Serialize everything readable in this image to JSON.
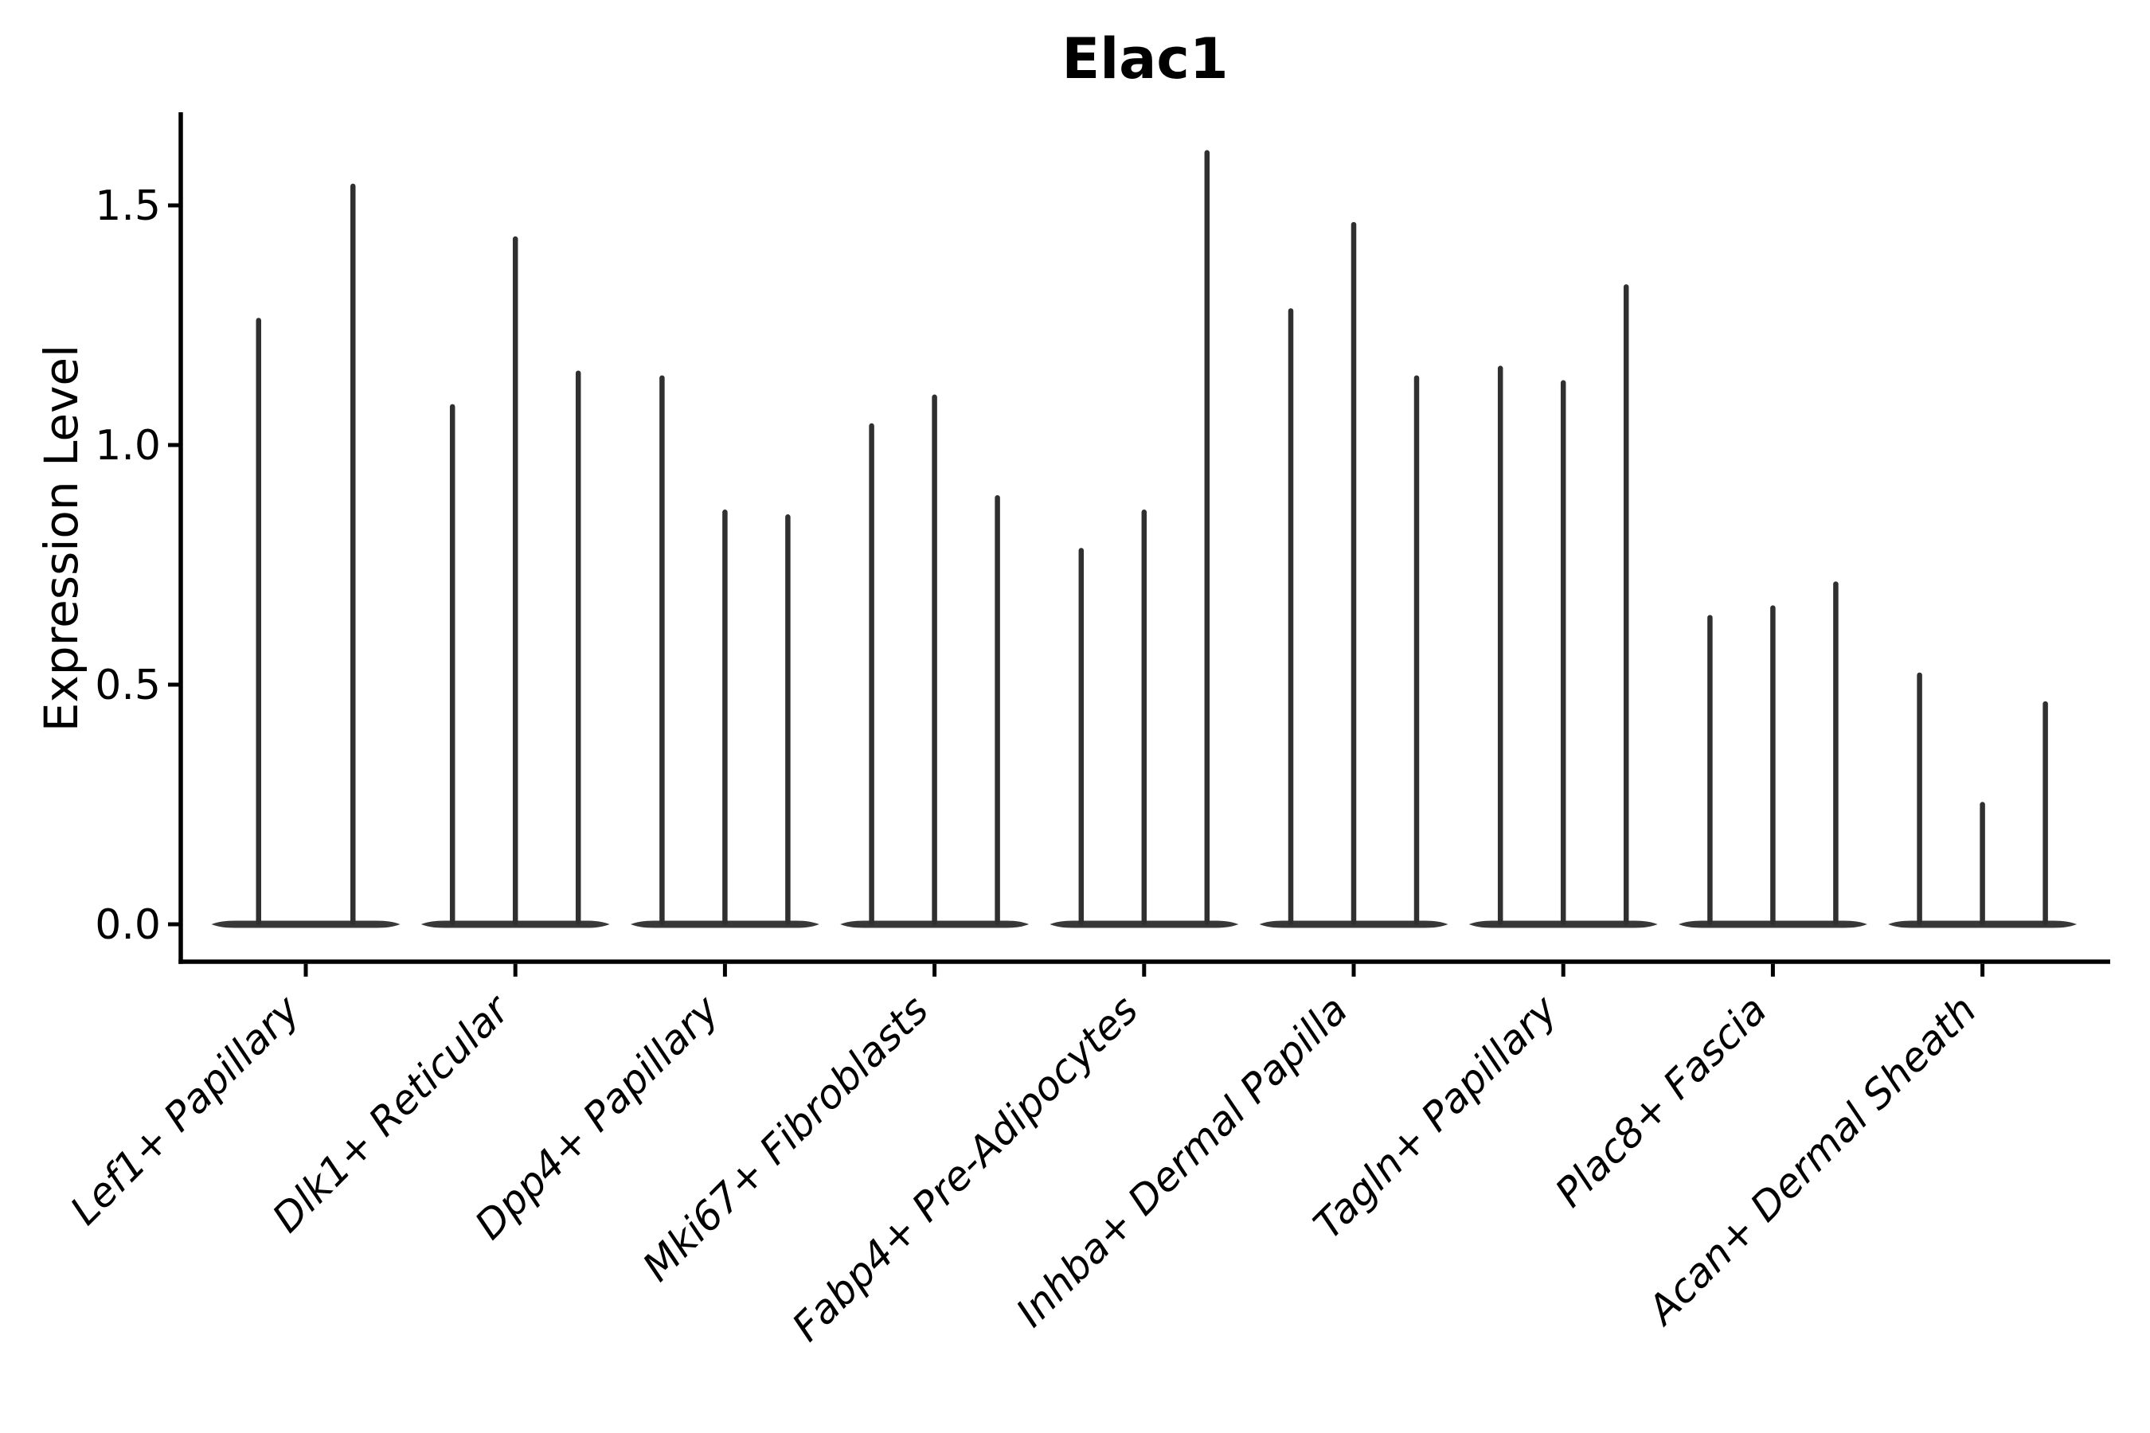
{
  "figure": {
    "title": "Elac1"
  },
  "axes": {
    "ylabel": "Expression Level",
    "xlabel": "",
    "ytick_labels": [
      "0.0",
      "0.5",
      "1.0",
      "1.5"
    ]
  },
  "chart_data": {
    "type": "violin",
    "title": "Elac1",
    "xlabel": "",
    "ylabel": "Expression Level",
    "ylim": [
      -0.08,
      1.7
    ],
    "yticks": [
      0.0,
      0.5,
      1.0,
      1.5
    ],
    "grid": false,
    "legend_position": "none",
    "background": "#ffffff",
    "categories": [
      "Lef1+ Papillary",
      "Dlk1+ Reticular",
      "Dpp4+ Papillary",
      "Mki67+ Fibroblasts",
      "Fabp4+ Pre-Adipocytes",
      "Inhba+ Dermal Papilla",
      "Tagln+ Papillary",
      "Plac8+ Fascia",
      "Acan+ Dermal Sheath"
    ],
    "violin_description": "Each category contains 2-3 ultra-thin violins: a flat dense body at expression 0 with a hair-thin tail rising to the listed maximum expression value.",
    "violins": [
      {
        "category": "Lef1+ Papillary",
        "maxima": [
          1.26,
          1.54
        ]
      },
      {
        "category": "Dlk1+ Reticular",
        "maxima": [
          1.08,
          1.43,
          1.15
        ]
      },
      {
        "category": "Dpp4+ Papillary",
        "maxima": [
          1.14,
          0.86,
          0.85
        ]
      },
      {
        "category": "Mki67+ Fibroblasts",
        "maxima": [
          1.04,
          1.1,
          0.89
        ]
      },
      {
        "category": "Fabp4+ Pre-Adipocytes",
        "maxima": [
          0.78,
          0.86,
          1.61
        ]
      },
      {
        "category": "Inhba+ Dermal Papilla",
        "maxima": [
          1.28,
          1.46,
          1.14
        ]
      },
      {
        "category": "Tagln+ Papillary",
        "maxima": [
          1.16,
          1.13,
          1.33
        ]
      },
      {
        "category": "Plac8+ Fascia",
        "maxima": [
          0.64,
          0.66,
          0.71
        ]
      },
      {
        "category": "Acan+ Dermal Sheath",
        "maxima": [
          0.52,
          0.25,
          0.46
        ]
      }
    ],
    "colors": {
      "violin": "#303030",
      "violin_body": "#383838",
      "axis": "#000000",
      "text": "#000000"
    }
  }
}
